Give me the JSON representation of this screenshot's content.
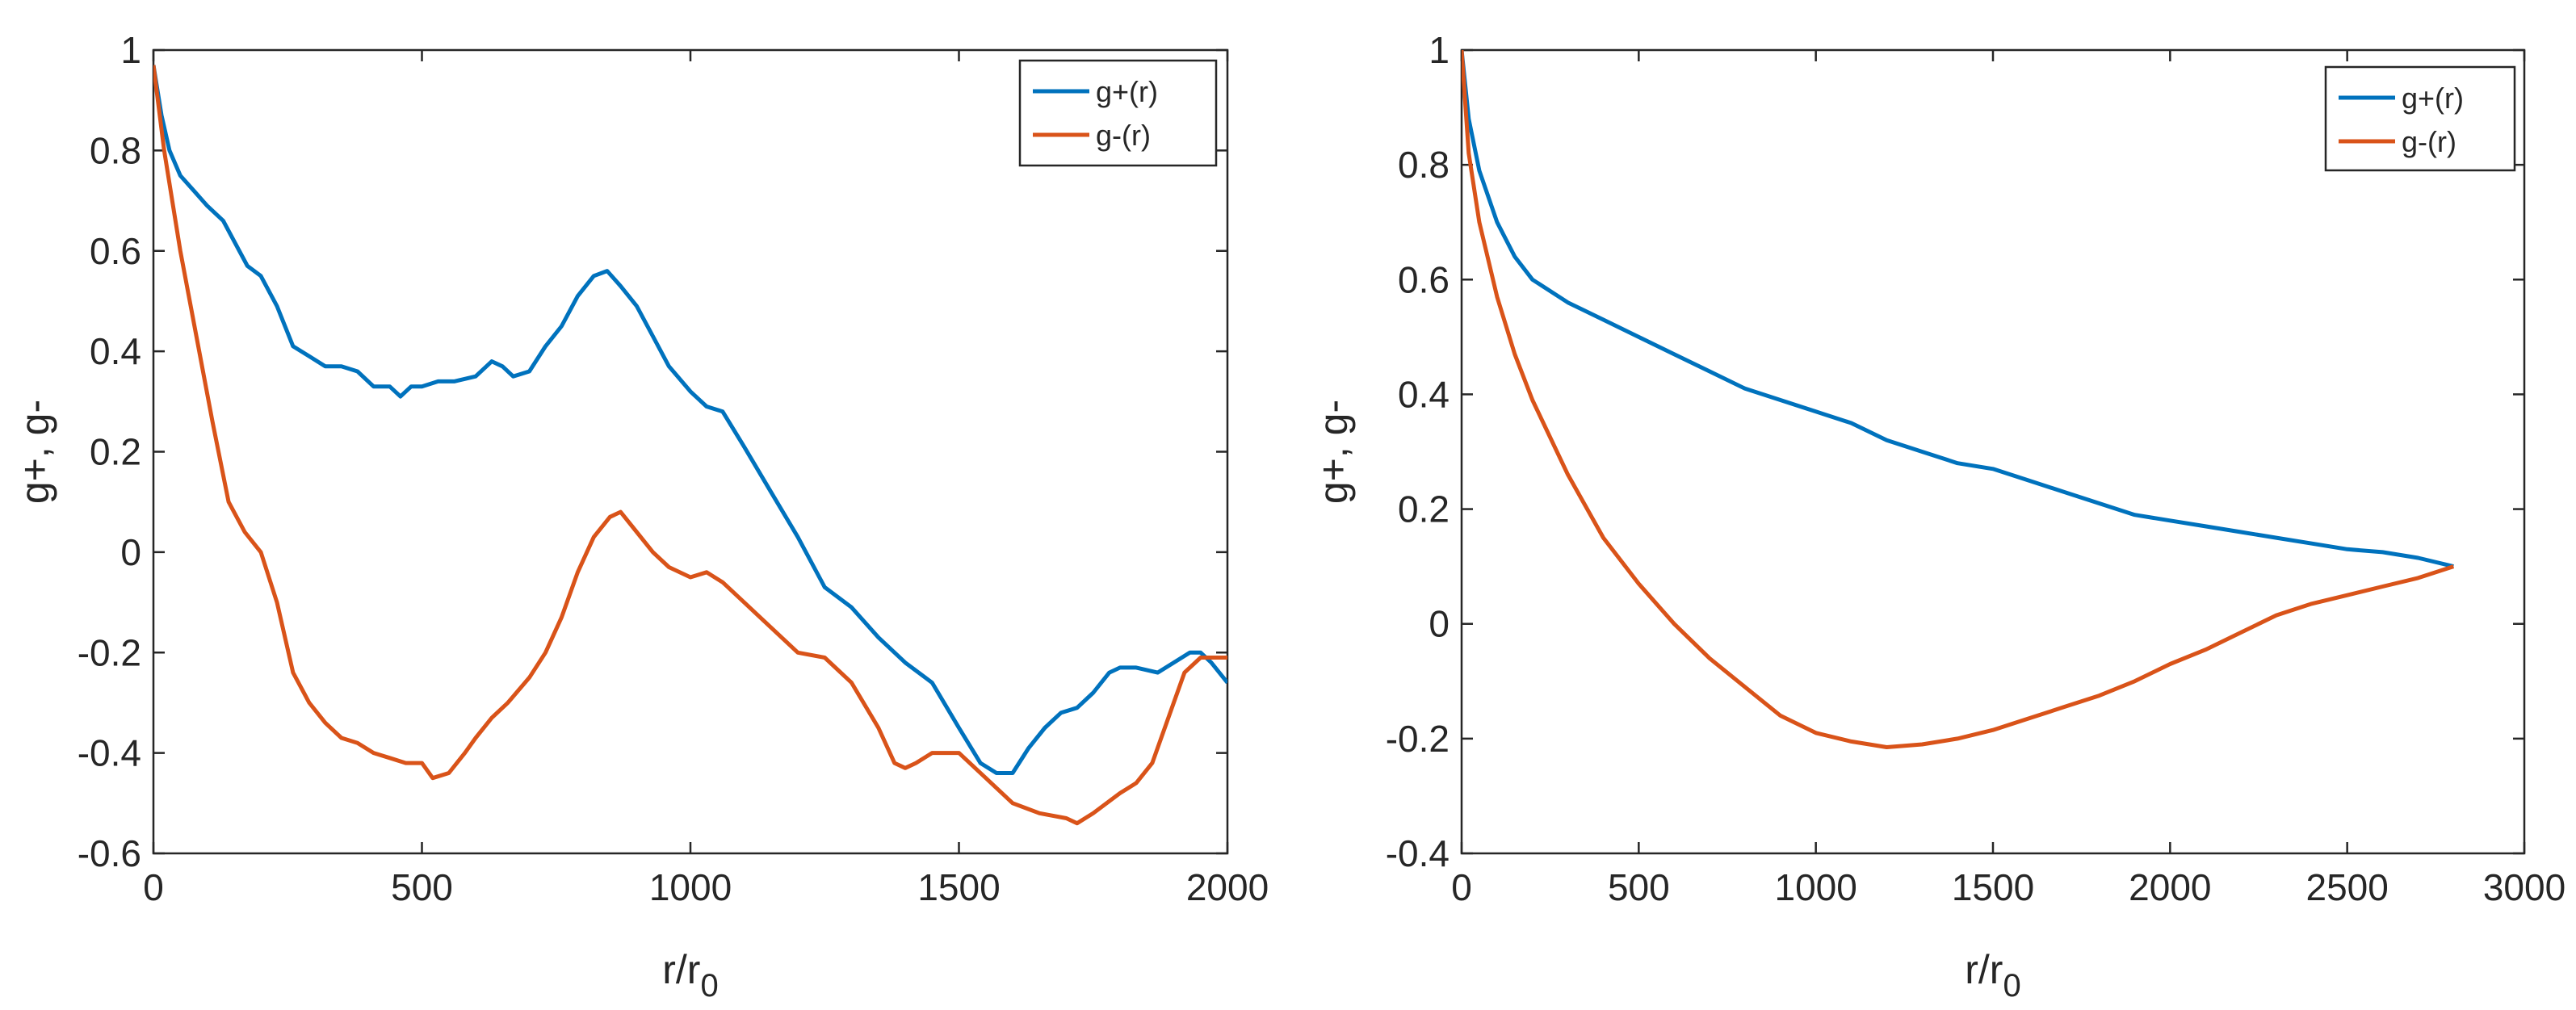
{
  "chart_data": [
    {
      "type": "line",
      "title": "",
      "xlabel": "r/r",
      "xlabel_sub": "0",
      "ylabel": "g+, g-",
      "xlim": [
        0,
        2000
      ],
      "ylim": [
        -0.6,
        1.0
      ],
      "xticks": [
        0,
        500,
        1000,
        1500,
        2000
      ],
      "xtick_labels": [
        "0",
        "500",
        "1000",
        "1500",
        "2000"
      ],
      "yticks": [
        -0.6,
        -0.4,
        -0.2,
        0,
        0.2,
        0.4,
        0.6,
        0.8,
        1.0
      ],
      "ytick_labels": [
        "-0.6",
        "-0.4",
        "-0.2",
        "0",
        "0.2",
        "0.4",
        "0.6",
        "0.8",
        "1"
      ],
      "grid": false,
      "legend_position": "top-right",
      "series": [
        {
          "name": "g+(r)",
          "color": "#0072BD",
          "x": [
            0,
            15,
            30,
            50,
            75,
            100,
            130,
            160,
            175,
            200,
            230,
            260,
            290,
            320,
            350,
            380,
            410,
            440,
            460,
            480,
            500,
            530,
            560,
            600,
            630,
            650,
            670,
            700,
            730,
            760,
            790,
            820,
            845,
            870,
            900,
            930,
            960,
            1000,
            1030,
            1060,
            1100,
            1150,
            1200,
            1250,
            1300,
            1350,
            1400,
            1450,
            1500,
            1540,
            1570,
            1600,
            1630,
            1660,
            1690,
            1720,
            1750,
            1780,
            1800,
            1830,
            1870,
            1900,
            1930,
            1950,
            1970,
            2000
          ],
          "y": [
            0.97,
            0.87,
            0.8,
            0.75,
            0.72,
            0.69,
            0.66,
            0.6,
            0.57,
            0.55,
            0.49,
            0.41,
            0.39,
            0.37,
            0.37,
            0.36,
            0.33,
            0.33,
            0.31,
            0.33,
            0.33,
            0.34,
            0.34,
            0.35,
            0.38,
            0.37,
            0.35,
            0.36,
            0.41,
            0.45,
            0.51,
            0.55,
            0.56,
            0.53,
            0.49,
            0.43,
            0.37,
            0.32,
            0.29,
            0.28,
            0.21,
            0.12,
            0.03,
            -0.07,
            -0.11,
            -0.17,
            -0.22,
            -0.26,
            -0.35,
            -0.42,
            -0.44,
            -0.44,
            -0.39,
            -0.35,
            -0.32,
            -0.31,
            -0.28,
            -0.24,
            -0.23,
            -0.23,
            -0.24,
            -0.22,
            -0.2,
            -0.2,
            -0.22,
            -0.26
          ]
        },
        {
          "name": "g-(r)",
          "color": "#D95319",
          "x": [
            0,
            20,
            50,
            80,
            110,
            140,
            170,
            200,
            230,
            260,
            290,
            320,
            350,
            380,
            410,
            440,
            470,
            500,
            520,
            550,
            580,
            600,
            630,
            660,
            700,
            730,
            760,
            790,
            820,
            850,
            870,
            900,
            930,
            960,
            1000,
            1030,
            1060,
            1100,
            1150,
            1200,
            1250,
            1300,
            1350,
            1380,
            1400,
            1420,
            1450,
            1500,
            1550,
            1600,
            1650,
            1700,
            1720,
            1750,
            1800,
            1830,
            1860,
            1900,
            1920,
            1950,
            2000
          ],
          "y": [
            0.97,
            0.8,
            0.6,
            0.43,
            0.26,
            0.1,
            0.04,
            0.0,
            -0.1,
            -0.24,
            -0.3,
            -0.34,
            -0.37,
            -0.38,
            -0.4,
            -0.41,
            -0.42,
            -0.42,
            -0.45,
            -0.44,
            -0.4,
            -0.37,
            -0.33,
            -0.3,
            -0.25,
            -0.2,
            -0.13,
            -0.04,
            0.03,
            0.07,
            0.08,
            0.04,
            0.0,
            -0.03,
            -0.05,
            -0.04,
            -0.06,
            -0.1,
            -0.15,
            -0.2,
            -0.21,
            -0.26,
            -0.35,
            -0.42,
            -0.43,
            -0.42,
            -0.4,
            -0.4,
            -0.45,
            -0.5,
            -0.52,
            -0.53,
            -0.54,
            -0.52,
            -0.48,
            -0.46,
            -0.42,
            -0.3,
            -0.24,
            -0.21,
            -0.21
          ]
        }
      ]
    },
    {
      "type": "line",
      "title": "",
      "xlabel": "r/r",
      "xlabel_sub": "0",
      "ylabel": "g+, g-",
      "xlim": [
        0,
        3000
      ],
      "ylim": [
        -0.4,
        1.0
      ],
      "xticks": [
        0,
        500,
        1000,
        1500,
        2000,
        2500,
        3000
      ],
      "xtick_labels": [
        "0",
        "500",
        "1000",
        "1500",
        "2000",
        "2500",
        "3000"
      ],
      "yticks": [
        -0.4,
        -0.2,
        0,
        0.2,
        0.4,
        0.6,
        0.8,
        1.0
      ],
      "ytick_labels": [
        "-0.4",
        "-0.2",
        "0",
        "0.2",
        "0.4",
        "0.6",
        "0.8",
        "1"
      ],
      "grid": false,
      "legend_position": "top-right",
      "series": [
        {
          "name": "g+(r)",
          "color": "#0072BD",
          "x": [
            0,
            20,
            50,
            100,
            150,
            200,
            300,
            400,
            500,
            600,
            700,
            800,
            900,
            1000,
            1100,
            1200,
            1300,
            1400,
            1500,
            1600,
            1700,
            1800,
            1900,
            2000,
            2100,
            2200,
            2300,
            2400,
            2500,
            2600,
            2700,
            2800
          ],
          "y": [
            1.0,
            0.88,
            0.79,
            0.7,
            0.64,
            0.6,
            0.56,
            0.53,
            0.5,
            0.47,
            0.44,
            0.41,
            0.39,
            0.37,
            0.35,
            0.32,
            0.3,
            0.28,
            0.27,
            0.25,
            0.23,
            0.21,
            0.19,
            0.18,
            0.17,
            0.16,
            0.15,
            0.14,
            0.13,
            0.125,
            0.115,
            0.1
          ]
        },
        {
          "name": "g-(r)",
          "color": "#D95319",
          "x": [
            0,
            20,
            50,
            100,
            150,
            200,
            300,
            400,
            500,
            600,
            700,
            800,
            900,
            1000,
            1100,
            1200,
            1300,
            1400,
            1500,
            1600,
            1700,
            1800,
            1900,
            2000,
            2100,
            2200,
            2300,
            2400,
            2500,
            2600,
            2700,
            2800
          ],
          "y": [
            1.0,
            0.82,
            0.7,
            0.57,
            0.47,
            0.39,
            0.26,
            0.15,
            0.07,
            0.0,
            -0.06,
            -0.11,
            -0.16,
            -0.19,
            -0.205,
            -0.215,
            -0.21,
            -0.2,
            -0.185,
            -0.165,
            -0.145,
            -0.125,
            -0.1,
            -0.07,
            -0.045,
            -0.015,
            0.015,
            0.035,
            0.05,
            0.065,
            0.08,
            0.1
          ]
        }
      ]
    }
  ]
}
